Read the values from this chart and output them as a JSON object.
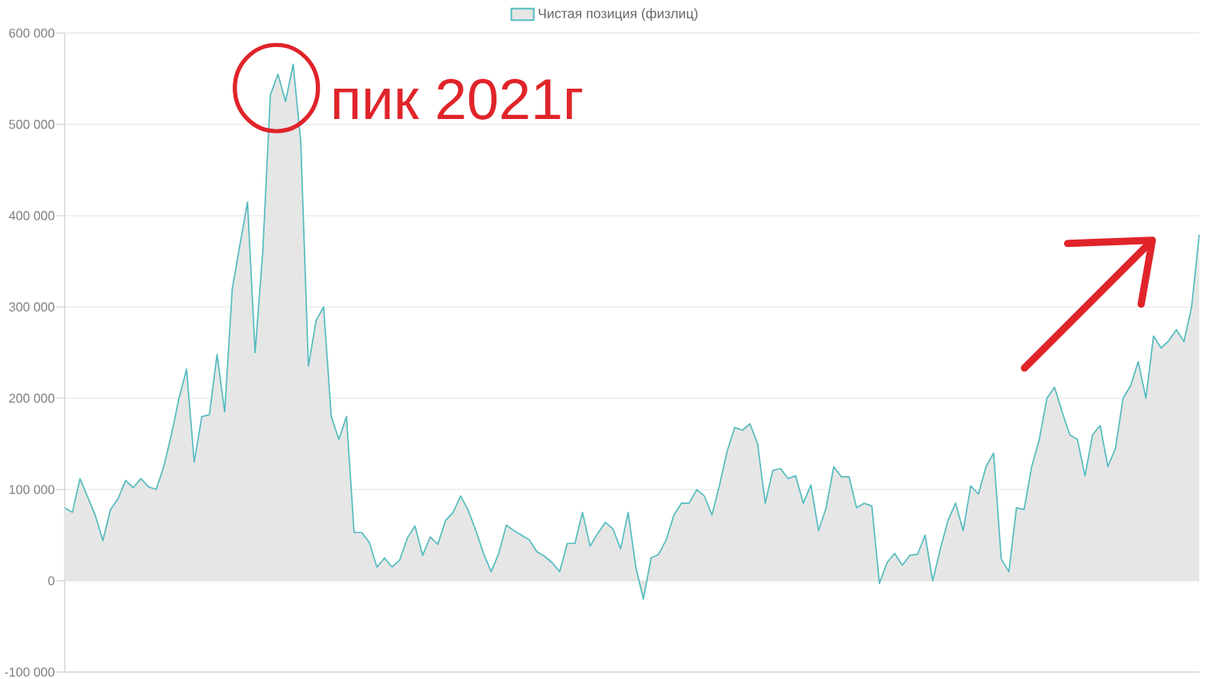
{
  "chart_data": {
    "type": "area",
    "legend": "top",
    "grid": "y",
    "categories": [
      null,
      null,
      null,
      null,
      null,
      null,
      null,
      null,
      null,
      null,
      null,
      null,
      null,
      null,
      null,
      null,
      null,
      null,
      null,
      null,
      null,
      null,
      null,
      null,
      null,
      null,
      null,
      null,
      null,
      null,
      null,
      null,
      null,
      null,
      null,
      null,
      null,
      null,
      null,
      null,
      null,
      null,
      null,
      null,
      null,
      null,
      null,
      null,
      null,
      null,
      null,
      null,
      null,
      null,
      null,
      null,
      null,
      null,
      null,
      null,
      null,
      null,
      null,
      null,
      null,
      null,
      null,
      null,
      null,
      null,
      null,
      null,
      null,
      null,
      null,
      null,
      null,
      null,
      null,
      null,
      null,
      null,
      null,
      null,
      null,
      null,
      null,
      null,
      null,
      null,
      null,
      null,
      null,
      null,
      null,
      null,
      null,
      null,
      null,
      null,
      null,
      null,
      null,
      null,
      null,
      null,
      null,
      null,
      null,
      null,
      null,
      null,
      null,
      null,
      null,
      null,
      null,
      null,
      null,
      null,
      null,
      null,
      null,
      null,
      null,
      null,
      null,
      null,
      null,
      null,
      null,
      null,
      null,
      null,
      null,
      null,
      null,
      null,
      null,
      null,
      null,
      null,
      null,
      null,
      null,
      null,
      null,
      null,
      null,
      null
    ],
    "series": [
      {
        "name": "Чистая позиция (физлиц)",
        "color": "#56bcbf",
        "values": [
          80000,
          75000,
          112000,
          92000,
          72000,
          44000,
          78000,
          90000,
          110000,
          102000,
          112000,
          103000,
          100000,
          125000,
          160000,
          200000,
          232000,
          130000,
          180000,
          182000,
          248000,
          185000,
          320000,
          368000,
          415000,
          250000,
          360000,
          532000,
          555000,
          525000,
          566000,
          480000,
          235000,
          285000,
          300000,
          180000,
          155000,
          180000,
          53000,
          53000,
          42000,
          15000,
          25000,
          15000,
          23000,
          47000,
          60000,
          28000,
          48000,
          40000,
          66000,
          75000,
          93000,
          77000,
          55000,
          30000,
          10000,
          30000,
          61000,
          55000,
          50000,
          45000,
          32000,
          27000,
          20000,
          10000,
          41000,
          41000,
          75000,
          38000,
          52000,
          64000,
          57000,
          35000,
          75000,
          15000,
          -20000,
          25000,
          29000,
          45000,
          72000,
          85000,
          85000,
          100000,
          93000,
          72000,
          105000,
          142000,
          168000,
          165000,
          172000,
          150000,
          85000,
          121000,
          123000,
          112000,
          115000,
          85000,
          105000,
          55000,
          80000,
          125000,
          114000,
          114000,
          80000,
          85000,
          82000,
          -3000,
          20000,
          30000,
          17000,
          28000,
          29000,
          50000,
          0,
          35000,
          66000,
          85000,
          55000,
          104000,
          95000,
          125000,
          140000,
          24000,
          10000,
          80000,
          78000,
          125000,
          155000,
          200000,
          212000,
          185000,
          160000,
          155000,
          115000,
          160000,
          170000,
          125000,
          145000,
          200000,
          214000,
          240000,
          200000,
          268000,
          255000,
          263000,
          275000,
          262000,
          300000,
          379000
        ]
      }
    ],
    "ylim": [
      -100000,
      600000
    ],
    "yticks": [
      {
        "value": -100000,
        "label": "-100 000"
      },
      {
        "value": 0,
        "label": "0"
      },
      {
        "value": 100000,
        "label": "100 000"
      },
      {
        "value": 200000,
        "label": "200 000"
      },
      {
        "value": 300000,
        "label": "300 000"
      },
      {
        "value": 400000,
        "label": "400 000"
      },
      {
        "value": 500000,
        "label": "500 000"
      },
      {
        "value": 600000,
        "label": "600 000"
      }
    ],
    "annotations": [
      "пик 2021г"
    ]
  }
}
